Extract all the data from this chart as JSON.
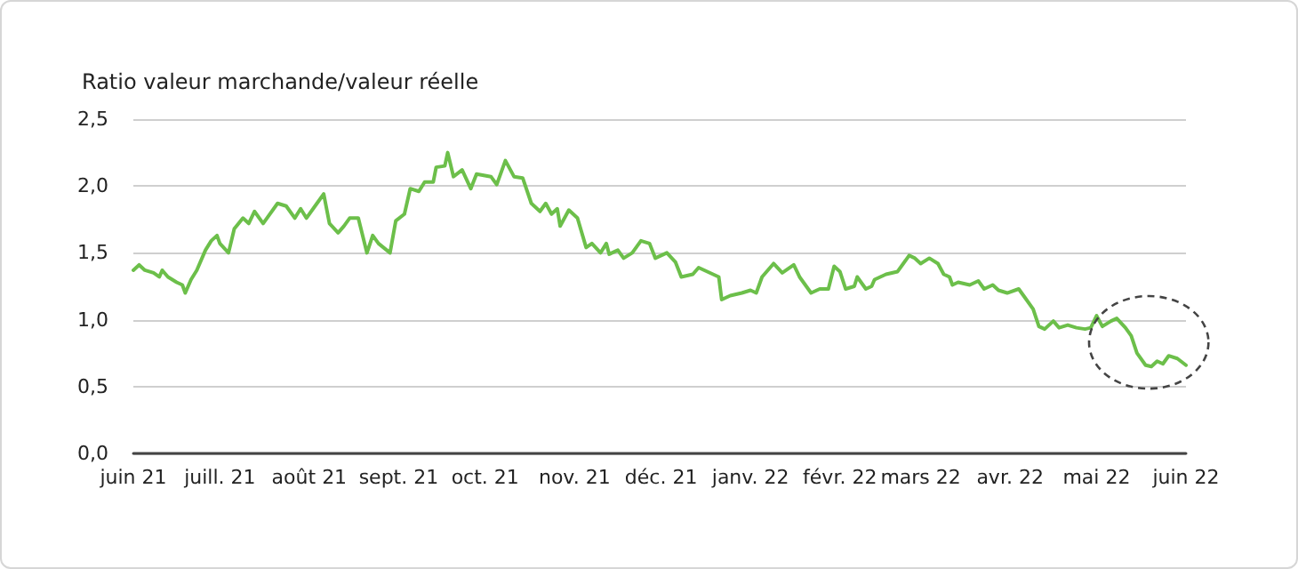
{
  "chart_data": {
    "type": "line",
    "ylabel": "Ratio valeur marchande/valeur réelle",
    "x": [
      "2021-06-01",
      "2021-06-03",
      "2021-06-05",
      "2021-06-08",
      "2021-06-10",
      "2021-06-11",
      "2021-06-13",
      "2021-06-16",
      "2021-06-18",
      "2021-06-19",
      "2021-06-21",
      "2021-06-23",
      "2021-06-26",
      "2021-06-28",
      "2021-06-30",
      "2021-07-01",
      "2021-07-04",
      "2021-07-06",
      "2021-07-09",
      "2021-07-11",
      "2021-07-13",
      "2021-07-16",
      "2021-07-21",
      "2021-07-24",
      "2021-07-27",
      "2021-07-29",
      "2021-07-31",
      "2021-08-03",
      "2021-08-06",
      "2021-08-08",
      "2021-08-11",
      "2021-08-13",
      "2021-08-15",
      "2021-08-18",
      "2021-08-21",
      "2021-08-23",
      "2021-08-25",
      "2021-08-29",
      "2021-08-31",
      "2021-09-03",
      "2021-09-05",
      "2021-09-08",
      "2021-09-10",
      "2021-09-13",
      "2021-09-14",
      "2021-09-17",
      "2021-09-18",
      "2021-09-20",
      "2021-09-23",
      "2021-09-26",
      "2021-09-28",
      "2021-10-03",
      "2021-10-05",
      "2021-10-08",
      "2021-10-11",
      "2021-10-14",
      "2021-10-17",
      "2021-10-20",
      "2021-10-22",
      "2021-10-24",
      "2021-10-26",
      "2021-10-27",
      "2021-10-30",
      "2021-11-02",
      "2021-11-05",
      "2021-11-07",
      "2021-11-10",
      "2021-11-12",
      "2021-11-13",
      "2021-11-16",
      "2021-11-18",
      "2021-11-21",
      "2021-11-24",
      "2021-11-27",
      "2021-11-29",
      "2021-12-03",
      "2021-12-06",
      "2021-12-08",
      "2021-12-12",
      "2021-12-14",
      "2021-12-18",
      "2021-12-21",
      "2021-12-22",
      "2021-12-25",
      "2021-12-29",
      "2022-01-01",
      "2022-01-03",
      "2022-01-05",
      "2022-01-09",
      "2022-01-12",
      "2022-01-16",
      "2022-01-18",
      "2022-01-22",
      "2022-01-25",
      "2022-01-28",
      "2022-01-30",
      "2022-02-01",
      "2022-02-03",
      "2022-02-06",
      "2022-02-07",
      "2022-02-10",
      "2022-02-12",
      "2022-02-13",
      "2022-02-17",
      "2022-02-21",
      "2022-02-25",
      "2022-02-27",
      "2022-03-01",
      "2022-03-04",
      "2022-03-07",
      "2022-03-09",
      "2022-03-11",
      "2022-03-12",
      "2022-03-14",
      "2022-03-18",
      "2022-03-21",
      "2022-03-23",
      "2022-03-26",
      "2022-03-28",
      "2022-03-31",
      "2022-04-04",
      "2022-04-06",
      "2022-04-09",
      "2022-04-11",
      "2022-04-13",
      "2022-04-16",
      "2022-04-18",
      "2022-04-21",
      "2022-04-24",
      "2022-04-27",
      "2022-04-29",
      "2022-05-01",
      "2022-05-03",
      "2022-05-06",
      "2022-05-08",
      "2022-05-11",
      "2022-05-13",
      "2022-05-15",
      "2022-05-18",
      "2022-05-20",
      "2022-05-22",
      "2022-05-24",
      "2022-05-26",
      "2022-05-29",
      "2022-06-01"
    ],
    "series": [
      {
        "color": "#6cbf4a",
        "values": [
          1.37,
          1.41,
          1.37,
          1.35,
          1.32,
          1.37,
          1.32,
          1.28,
          1.26,
          1.2,
          1.3,
          1.37,
          1.52,
          1.59,
          1.63,
          1.57,
          1.5,
          1.68,
          1.76,
          1.72,
          1.81,
          1.72,
          1.87,
          1.85,
          1.76,
          1.83,
          1.76,
          1.85,
          1.94,
          1.72,
          1.65,
          1.7,
          1.76,
          1.76,
          1.5,
          1.63,
          1.57,
          1.5,
          1.74,
          1.79,
          1.98,
          1.96,
          2.03,
          2.03,
          2.14,
          2.15,
          2.25,
          2.07,
          2.12,
          1.98,
          2.09,
          2.07,
          2.01,
          2.19,
          2.07,
          2.06,
          1.87,
          1.81,
          1.87,
          1.79,
          1.83,
          1.7,
          1.82,
          1.76,
          1.54,
          1.57,
          1.5,
          1.57,
          1.49,
          1.52,
          1.46,
          1.5,
          1.59,
          1.57,
          1.46,
          1.5,
          1.43,
          1.32,
          1.34,
          1.39,
          1.35,
          1.32,
          1.15,
          1.18,
          1.2,
          1.22,
          1.2,
          1.32,
          1.42,
          1.35,
          1.41,
          1.32,
          1.2,
          1.23,
          1.23,
          1.4,
          1.36,
          1.23,
          1.25,
          1.32,
          1.23,
          1.25,
          1.3,
          1.34,
          1.36,
          1.48,
          1.46,
          1.42,
          1.46,
          1.42,
          1.34,
          1.32,
          1.26,
          1.28,
          1.26,
          1.29,
          1.23,
          1.26,
          1.22,
          1.2,
          1.23,
          1.17,
          1.08,
          0.95,
          0.93,
          0.99,
          0.94,
          0.96,
          0.94,
          0.93,
          0.94,
          1.03,
          0.95,
          0.99,
          1.01,
          0.94,
          0.88,
          0.75,
          0.66,
          0.65,
          0.69,
          0.67,
          0.73,
          0.71,
          0.66
        ]
      }
    ],
    "xlim": [
      "2021-06-01",
      "2022-06-01"
    ],
    "xticks": [
      {
        "value": "2021-06-01",
        "label": "juin 21"
      },
      {
        "value": "2021-07-01",
        "label": "juill. 21"
      },
      {
        "value": "2021-08-01",
        "label": "août 21"
      },
      {
        "value": "2021-09-01",
        "label": "sept. 21"
      },
      {
        "value": "2021-10-01",
        "label": "oct. 21"
      },
      {
        "value": "2021-11-01",
        "label": "nov. 21"
      },
      {
        "value": "2021-12-01",
        "label": "déc. 21"
      },
      {
        "value": "2022-01-01",
        "label": "janv. 22"
      },
      {
        "value": "2022-02-01",
        "label": "févr. 22"
      },
      {
        "value": "2022-03-01",
        "label": "mars 22"
      },
      {
        "value": "2022-04-01",
        "label": "avr. 22"
      },
      {
        "value": "2022-05-01",
        "label": "mai 22"
      },
      {
        "value": "2022-06-01",
        "label": "juin 22"
      }
    ],
    "ylim": [
      0,
      2.5
    ],
    "yticks": [
      {
        "value": 0,
        "label": "0,0"
      },
      {
        "value": 0.5,
        "label": "0,5"
      },
      {
        "value": 1,
        "label": "1,0"
      },
      {
        "value": 1.5,
        "label": "1,5"
      },
      {
        "value": 2,
        "label": "2,0"
      },
      {
        "value": 2.5,
        "label": "2,5"
      }
    ],
    "grid": "y",
    "marker": "none",
    "line_style": "solid"
  }
}
